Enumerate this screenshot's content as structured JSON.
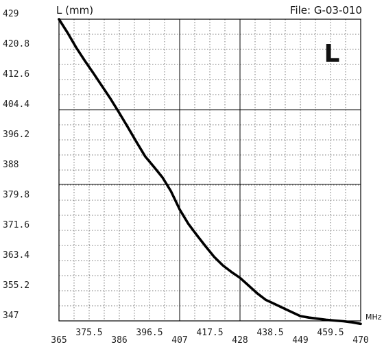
{
  "chart_data": {
    "type": "line",
    "ylabel": "L (mm)",
    "file_label": "File:  G-03-010",
    "letter": "L",
    "xunit": "MHz",
    "xlim": [
      365,
      470
    ],
    "ylim": [
      347,
      429
    ],
    "x_ticks_lower": [
      "365",
      "386",
      "407",
      "428",
      "449",
      "470"
    ],
    "x_ticks_upper": [
      "375.5",
      "396.5",
      "417.5",
      "438.5",
      "459.5"
    ],
    "y_ticks": [
      "429",
      "420.8",
      "412.6",
      "404.4",
      "396.2",
      "388",
      "379.8",
      "371.6",
      "363.4",
      "355.2",
      "347"
    ],
    "grid": true,
    "series": [
      {
        "x": [
          365,
          368,
          371,
          374,
          377,
          380,
          383,
          386,
          389,
          392,
          395,
          398,
          401,
          404,
          407,
          410,
          413,
          416,
          419,
          422,
          425,
          428,
          431,
          434,
          437,
          440,
          443,
          446,
          449,
          452,
          455,
          458,
          461,
          464,
          467,
          470
        ],
        "y": [
          429,
          425.3,
          421.3,
          417.7,
          414.3,
          410.8,
          407.3,
          403.5,
          399.6,
          395.6,
          391.7,
          388.9,
          386.0,
          382.2,
          377.3,
          373.4,
          370.3,
          367.3,
          364.4,
          362.1,
          360.3,
          358.7,
          356.6,
          354.5,
          352.7,
          351.6,
          350.5,
          349.4,
          348.3,
          347.9,
          347.6,
          347.3,
          347.1,
          346.9,
          346.6,
          346.2
        ]
      }
    ]
  }
}
